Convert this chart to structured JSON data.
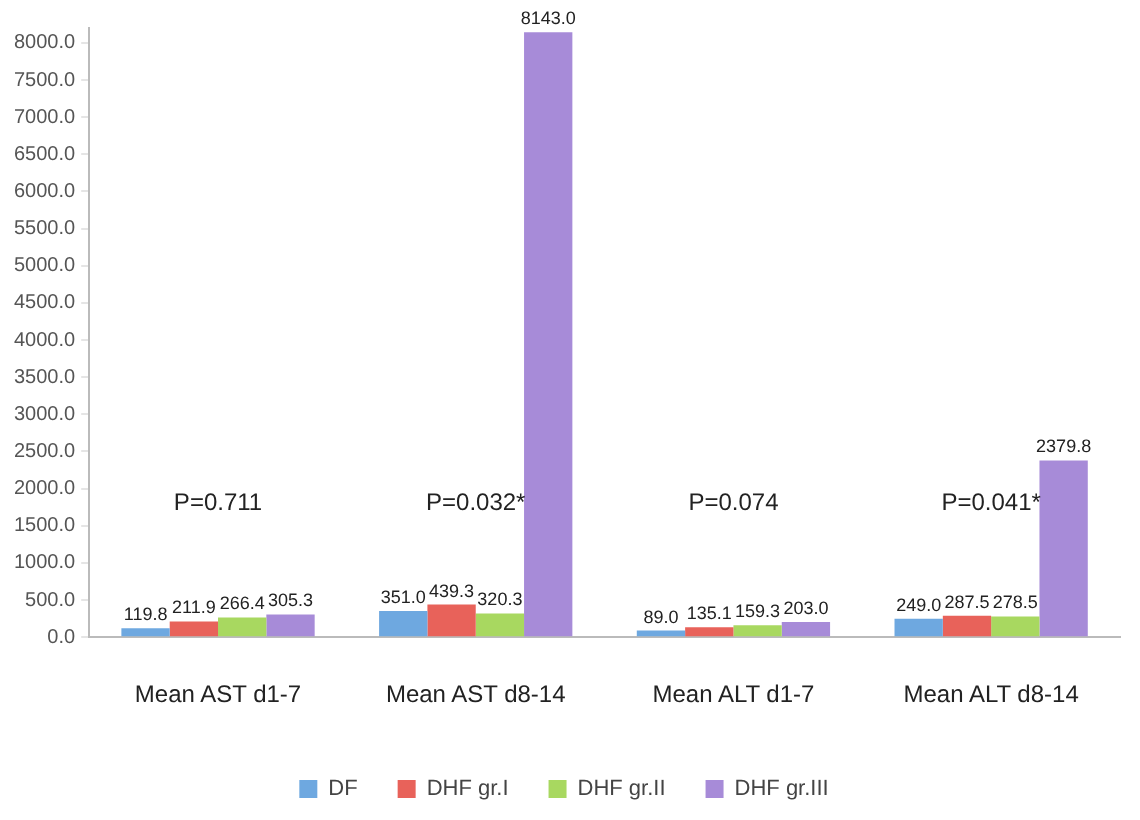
{
  "chart_data": {
    "type": "bar",
    "categories": [
      "Mean AST d1-7",
      "Mean AST d8-14",
      "Mean ALT d1-7",
      "Mean ALT d8-14"
    ],
    "series": [
      {
        "name": "DF",
        "color": "#6ea8e0",
        "values": [
          119.8,
          351.0,
          89.0,
          249.0
        ],
        "value_labels": [
          "119.8",
          "351.0",
          "89.0",
          "249.0"
        ]
      },
      {
        "name": "DHF gr.I",
        "color": "#e8625a",
        "values": [
          211.9,
          439.3,
          135.1,
          287.5
        ],
        "value_labels": [
          "211.9",
          "439.3",
          "135.1",
          "287.5"
        ]
      },
      {
        "name": "DHF gr.II",
        "color": "#a8d860",
        "values": [
          266.4,
          320.3,
          159.3,
          278.5
        ],
        "value_labels": [
          "266.4",
          "320.3",
          "159.3",
          "278.5"
        ]
      },
      {
        "name": "DHF gr.III",
        "color": "#a78bd8",
        "values": [
          305.3,
          8143.0,
          203.0,
          2379.8
        ],
        "value_labels": [
          "305.3",
          "8143.0",
          "203.0",
          "2379.8"
        ]
      }
    ],
    "ylim": [
      0,
      8200
    ],
    "yticks": [
      {
        "value": 0,
        "label": "0.0"
      },
      {
        "value": 500,
        "label": "500.0"
      },
      {
        "value": 1000,
        "label": "1000.0"
      },
      {
        "value": 1500,
        "label": "1500.0"
      },
      {
        "value": 2000,
        "label": "2000.0"
      },
      {
        "value": 2500,
        "label": "2500.0"
      },
      {
        "value": 3000,
        "label": "3000.0"
      },
      {
        "value": 3500,
        "label": "3500.0"
      },
      {
        "value": 4000,
        "label": "4000.0"
      },
      {
        "value": 4500,
        "label": "4500.0"
      },
      {
        "value": 5000,
        "label": "5000.0"
      },
      {
        "value": 5500,
        "label": "5500.0"
      },
      {
        "value": 6000,
        "label": "6000.0"
      },
      {
        "value": 6500,
        "label": "6500.0"
      },
      {
        "value": 7000,
        "label": "7000.0"
      },
      {
        "value": 7500,
        "label": "7500.0"
      },
      {
        "value": 8000,
        "label": "8000.0"
      }
    ],
    "annotations": [
      "P=0.711",
      "P=0.032*",
      "P=0.074",
      "P=0.041*"
    ],
    "grid": false,
    "legend": "bottom"
  }
}
